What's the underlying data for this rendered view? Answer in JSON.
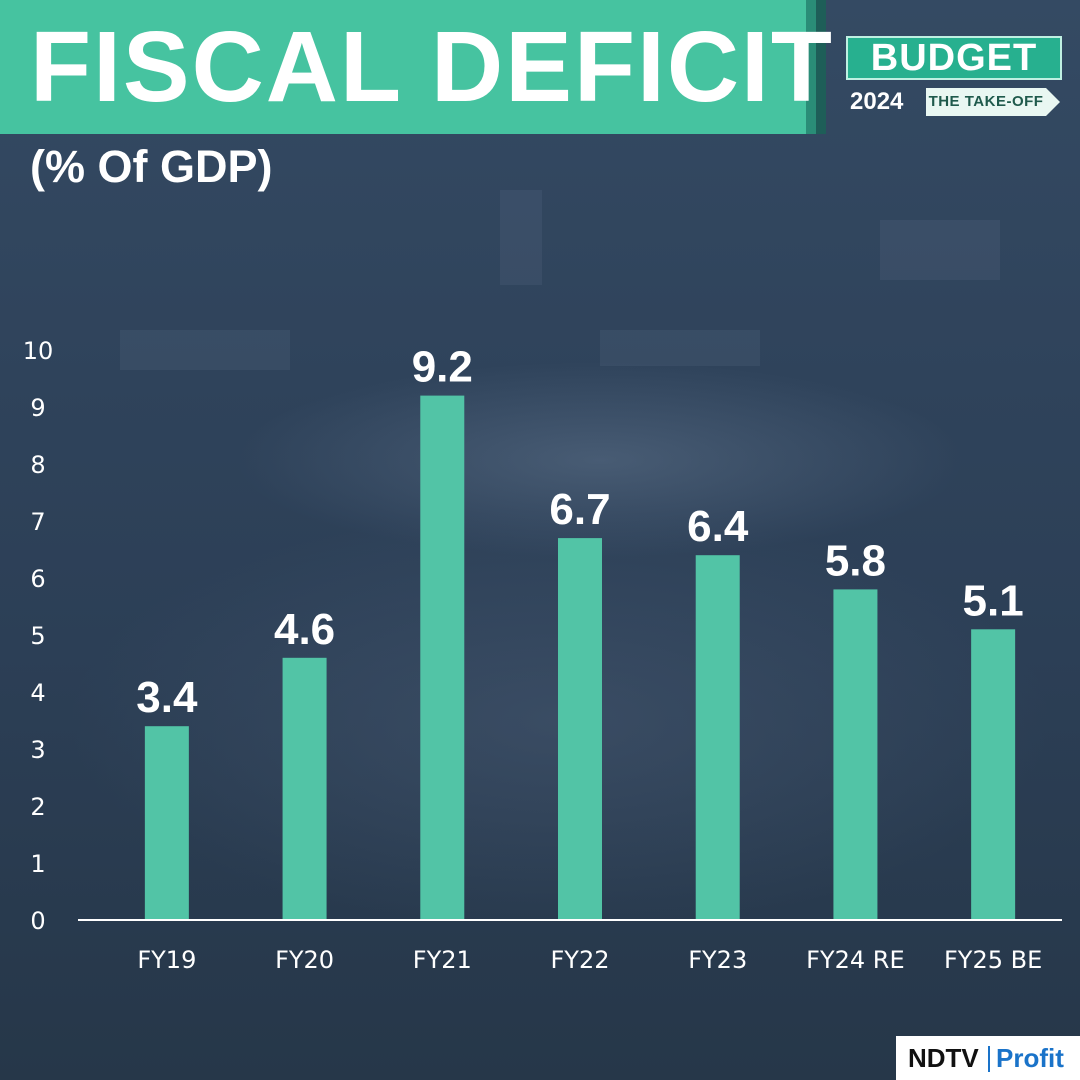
{
  "title": "FISCAL DEFICIT",
  "subtitle": "(% Of GDP)",
  "badge": {
    "top": "BUDGET",
    "year": "2024",
    "tag": "THE TAKE-OFF"
  },
  "logo": {
    "left": "NDTV",
    "right": "Profit"
  },
  "colors": {
    "accent": "#46c3a0",
    "bar": "#52c4a6",
    "text": "#ffffff",
    "background": "#2b3c52"
  },
  "chart_data": {
    "type": "bar",
    "title": "FISCAL DEFICIT",
    "subtitle": "(% Of GDP)",
    "categories": [
      "FY19",
      "FY20",
      "FY21",
      "FY22",
      "FY23",
      "FY24 RE",
      "FY25 BE"
    ],
    "values": [
      3.4,
      4.6,
      9.2,
      6.7,
      6.4,
      5.8,
      5.1
    ],
    "value_labels": [
      "3.4",
      "4.6",
      "9.2",
      "6.7",
      "6.4",
      "5.8",
      "5.1"
    ],
    "yticks": [
      "0",
      "1",
      "2",
      "3",
      "4",
      "5",
      "6",
      "7",
      "8",
      "9",
      "10"
    ],
    "ylim": [
      0,
      10
    ],
    "grid": false,
    "legend": "none"
  }
}
